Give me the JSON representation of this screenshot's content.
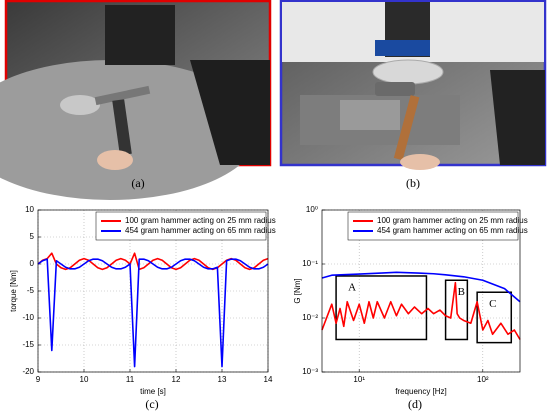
{
  "figure_labels": [
    "(a)",
    "(b)",
    "(c)",
    "(d)"
  ],
  "chart_data": [
    {
      "type": "line",
      "xlabel": "time [s]",
      "ylabel": "torque [Nm]",
      "xlim": [
        9,
        14
      ],
      "xticks": [
        9,
        10,
        11,
        12,
        13,
        14
      ],
      "ylim": [
        -20,
        10
      ],
      "yticks": [
        -20,
        -15,
        -10,
        -5,
        0,
        5,
        10
      ],
      "grid": true,
      "legend": "upper right",
      "x": [
        9,
        9.1,
        9.2,
        9.3,
        9.4,
        9.5,
        9.6,
        9.7,
        9.8,
        9.9,
        10,
        10.1,
        10.2,
        10.3,
        10.4,
        10.5,
        10.6,
        10.7,
        10.8,
        10.9,
        11,
        11.1,
        11.2,
        11.3,
        11.4,
        11.5,
        11.6,
        11.7,
        11.8,
        11.9,
        12,
        12.1,
        12.2,
        12.3,
        12.4,
        12.5,
        12.6,
        12.7,
        12.8,
        12.9,
        13,
        13.1,
        13.2,
        13.3,
        13.4,
        13.5,
        13.6,
        13.7,
        13.8,
        13.9,
        14
      ],
      "series": [
        {
          "name": "100 gram hammer acting on 25 mm radius",
          "color": "#ff0000",
          "values": [
            0,
            0.7,
            1,
            2,
            0,
            -0.7,
            -1,
            -0.7,
            0,
            0.7,
            1,
            0.7,
            0,
            -0.7,
            -1,
            -0.7,
            0,
            0.7,
            1,
            0.7,
            0,
            2,
            -1,
            -0.7,
            0,
            0.7,
            1,
            0.7,
            0,
            -0.7,
            -1,
            -0.7,
            0,
            0.7,
            1,
            0.7,
            0,
            -0.7,
            -1,
            -0.7,
            0,
            0.7,
            1,
            0.7,
            0,
            -0.7,
            -1,
            -0.7,
            0,
            0.7,
            1
          ]
        },
        {
          "name": "454 gram hammer acting on 65 mm radius",
          "color": "#0000ff",
          "values": [
            0,
            0.6,
            0.9,
            -16,
            0.6,
            0,
            -0.6,
            -0.9,
            -0.9,
            -0.6,
            0,
            0.6,
            0.9,
            0.9,
            0.6,
            0,
            -0.6,
            -0.9,
            -0.9,
            -0.6,
            0,
            -19,
            0.9,
            0.9,
            0.6,
            0,
            -0.6,
            -0.9,
            -0.9,
            -0.6,
            0,
            0.6,
            0.9,
            0.9,
            0.6,
            0,
            -0.6,
            -0.9,
            -0.9,
            -0.6,
            -19,
            0.6,
            0.9,
            0.9,
            0.6,
            0,
            -0.6,
            -0.9,
            -0.9,
            -0.6,
            0
          ]
        }
      ]
    },
    {
      "type": "line",
      "xlabel": "frequency [Hz]",
      "ylabel": "G  [Nm]",
      "xscale": "log",
      "yscale": "log",
      "xlim": [
        5,
        200
      ],
      "xticks": [
        {
          "value": 10,
          "label": "10¹"
        },
        {
          "value": 100,
          "label": "10²"
        }
      ],
      "ylim": [
        0.001,
        1
      ],
      "yticks": [
        {
          "value": 0.001,
          "label": "10⁻³"
        },
        {
          "value": 0.01,
          "label": "10⁻²"
        },
        {
          "value": 0.1,
          "label": "10⁻¹"
        },
        {
          "value": 1,
          "label": "10⁰"
        }
      ],
      "grid": true,
      "legend": "upper right",
      "series": [
        {
          "name": "100 gram hammer acting on 25 mm radius",
          "color": "#ff0000",
          "x": [
            5,
            6,
            6.5,
            7,
            7.5,
            8,
            9,
            10,
            11,
            12,
            13,
            14,
            16,
            18,
            20,
            22,
            25,
            28,
            32,
            36,
            40,
            45,
            50,
            55,
            60,
            62,
            65,
            70,
            80,
            90,
            100,
            110,
            120,
            140,
            160,
            180,
            200
          ],
          "values": [
            0.006,
            0.018,
            0.008,
            0.015,
            0.007,
            0.02,
            0.009,
            0.018,
            0.008,
            0.02,
            0.01,
            0.02,
            0.01,
            0.02,
            0.011,
            0.018,
            0.012,
            0.016,
            0.012,
            0.015,
            0.012,
            0.014,
            0.011,
            0.01,
            0.045,
            0.012,
            0.01,
            0.009,
            0.008,
            0.02,
            0.006,
            0.009,
            0.005,
            0.008,
            0.005,
            0.006,
            0.004
          ]
        },
        {
          "name": "454 gram hammer acting on 65 mm radius",
          "color": "#0000ff",
          "x": [
            5,
            6,
            10,
            15,
            20,
            30,
            40,
            50,
            70,
            100,
            150,
            200
          ],
          "values": [
            0.055,
            0.062,
            0.065,
            0.068,
            0.07,
            0.068,
            0.066,
            0.063,
            0.058,
            0.05,
            0.035,
            0.02
          ]
        }
      ],
      "regions": [
        {
          "label": "A",
          "x": [
            6.5,
            35
          ],
          "y": [
            0.004,
            0.06
          ]
        },
        {
          "label": "B",
          "x": [
            50,
            75
          ],
          "y": [
            0.004,
            0.05
          ]
        },
        {
          "label": "C",
          "x": [
            90,
            170
          ],
          "y": [
            0.0035,
            0.03
          ]
        }
      ]
    }
  ]
}
